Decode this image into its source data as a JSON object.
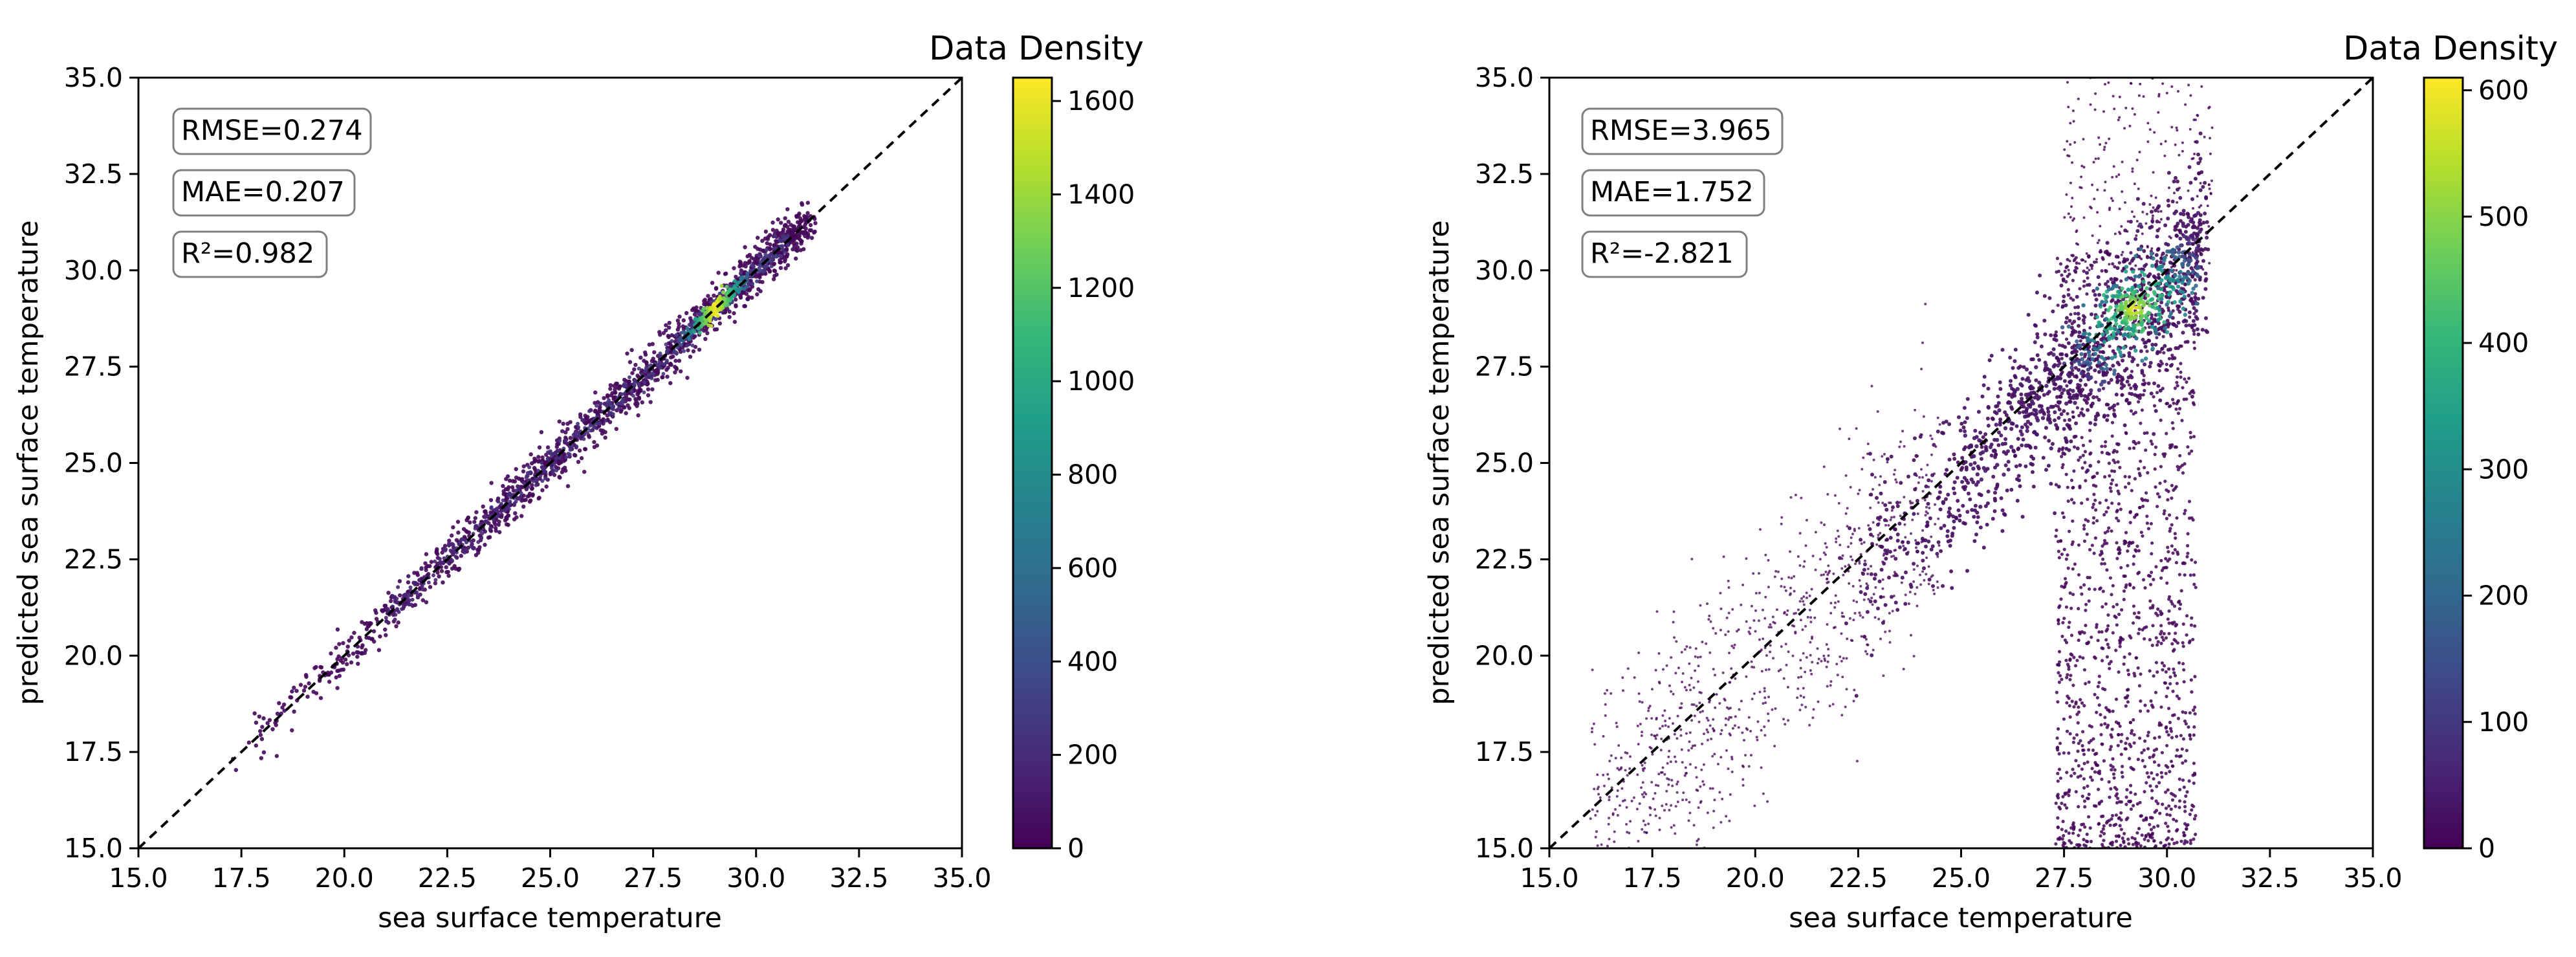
{
  "chart_data": [
    {
      "type": "heatmap",
      "subtype": "density-scatter",
      "xlabel": "sea surface temperature",
      "ylabel": "predicted sea surface temperature",
      "xlim": [
        15.0,
        35.0
      ],
      "ylim": [
        15.0,
        35.0
      ],
      "xticks": [
        "15.0",
        "17.5",
        "20.0",
        "22.5",
        "25.0",
        "27.5",
        "30.0",
        "32.5",
        "35.0"
      ],
      "yticks": [
        "15.0",
        "17.5",
        "20.0",
        "22.5",
        "25.0",
        "27.5",
        "30.0",
        "32.5",
        "35.0"
      ],
      "reference_line": "y = x",
      "stats": [
        "RMSE=0.274",
        "MAE=0.207",
        "R²=0.982"
      ],
      "colorbar": {
        "title": "Data Density",
        "range": [
          0,
          1650
        ],
        "ticks": [
          0,
          200,
          400,
          600,
          800,
          1000,
          1200,
          1400,
          1600
        ],
        "colormap": "viridis"
      },
      "density_summary": {
        "x_range": [
          17.0,
          31.5
        ],
        "peak": [
          29.0,
          29.0
        ],
        "spread": "tight along diagonal"
      }
    },
    {
      "type": "heatmap",
      "subtype": "density-scatter",
      "xlabel": "sea surface temperature",
      "ylabel": "predicted sea surface temperature",
      "xlim": [
        15.0,
        35.0
      ],
      "ylim": [
        15.0,
        35.0
      ],
      "xticks": [
        "15.0",
        "17.5",
        "20.0",
        "22.5",
        "25.0",
        "27.5",
        "30.0",
        "32.5",
        "35.0"
      ],
      "yticks": [
        "15.0",
        "17.5",
        "20.0",
        "22.5",
        "25.0",
        "27.5",
        "30.0",
        "32.5",
        "35.0"
      ],
      "reference_line": "y = x",
      "stats": [
        "RMSE=3.965",
        "MAE=1.752",
        "R²=-2.821"
      ],
      "colorbar": {
        "title": "Data Density",
        "range": [
          0,
          610
        ],
        "ticks": [
          0,
          100,
          200,
          300,
          400,
          500,
          600
        ],
        "colormap": "viridis"
      },
      "density_summary": {
        "x_range": [
          15.5,
          31.0
        ],
        "peak": [
          29.2,
          29.0
        ],
        "spread": "wide, with a vertical column near x=27-31 and underestimation"
      }
    }
  ],
  "colors": {
    "viridis": [
      "#440154",
      "#482878",
      "#3e4989",
      "#31688e",
      "#26828e",
      "#1f9e89",
      "#35b779",
      "#6ece58",
      "#b5de2b",
      "#fde725"
    ],
    "axis": "#000000",
    "stat_box_edge": "#7f7f7f"
  }
}
